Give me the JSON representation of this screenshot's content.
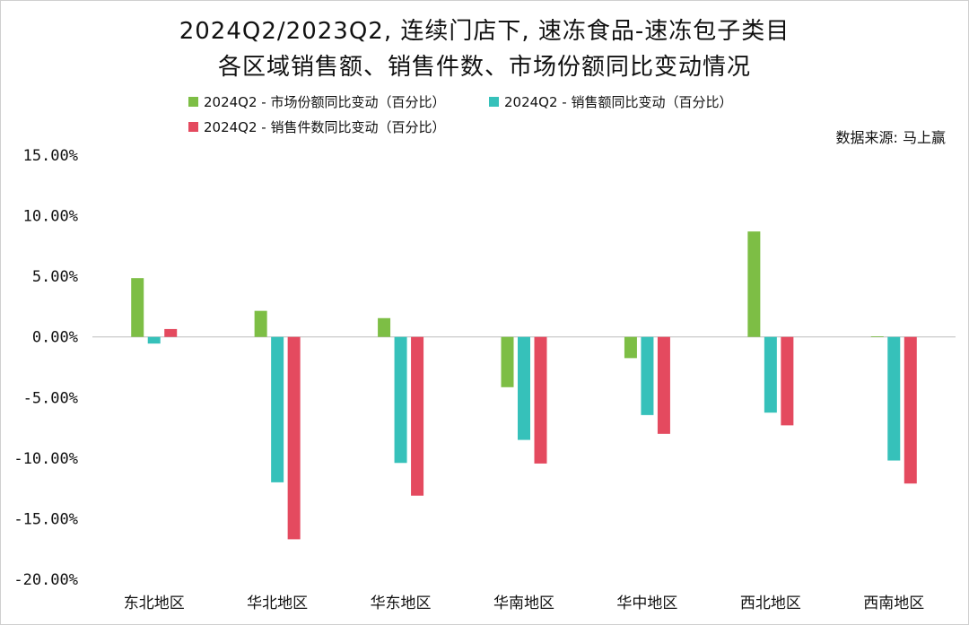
{
  "title_line1": "2024Q2/2023Q2, 连续门店下, 速冻食品-速冻包子类目",
  "title_line2": "各区域销售额、销售件数、市场份额同比变动情况",
  "source": "数据来源: 马上赢",
  "colors": {
    "share": "#7dbe45",
    "sales": "#36c1ba",
    "units": "#e44a5f"
  },
  "chart_data": {
    "type": "bar",
    "title": "2024Q2/2023Q2, 连续门店下, 速冻食品-速冻包子类目 各区域销售额、销售件数、市场份额同比变动情况",
    "categories": [
      "东北地区",
      "华北地区",
      "华东地区",
      "华南地区",
      "华中地区",
      "西北地区",
      "西南地区"
    ],
    "series": [
      {
        "name": "2024Q2 - 市场份额同比变动（百分比）",
        "color_key": "share",
        "values": [
          4.85,
          2.15,
          1.55,
          -4.15,
          -1.75,
          8.7,
          0.05
        ]
      },
      {
        "name": "2024Q2 - 销售额同比变动（百分比）",
        "color_key": "sales",
        "values": [
          -0.55,
          -12.0,
          -10.4,
          -8.5,
          -6.45,
          -6.25,
          -10.2
        ]
      },
      {
        "name": "2024Q2 - 销售件数同比变动（百分比）",
        "color_key": "units",
        "values": [
          0.65,
          -16.7,
          -13.1,
          -10.45,
          -8.0,
          -7.3,
          -12.1
        ]
      }
    ],
    "ylim": [
      -20,
      15
    ],
    "yticks": [
      15,
      10,
      5,
      0,
      -5,
      -10,
      -15,
      -20
    ],
    "ytick_labels": [
      "15.00%",
      "10.00%",
      "5.00%",
      "0.00%",
      "-5.00%",
      "-10.00%",
      "-15.00%",
      "-20.00%"
    ],
    "legend_position": "top",
    "grid": false
  }
}
